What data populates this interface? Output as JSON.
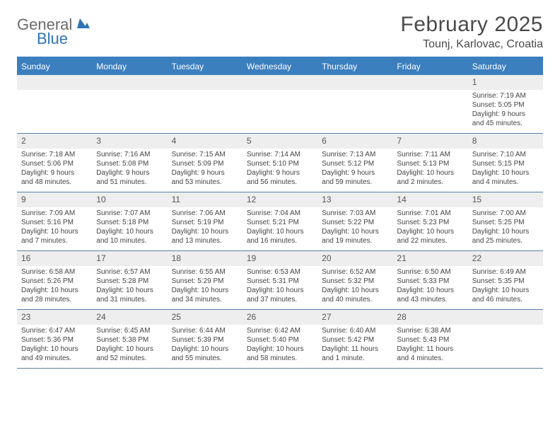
{
  "logo": {
    "text1": "General",
    "text2": "Blue"
  },
  "title": "February 2025",
  "location": "Tounj, Karlovac, Croatia",
  "colors": {
    "header_bg": "#3b7fbf",
    "header_text": "#ffffff",
    "daynum_bg": "#eeeeee",
    "border": "#5a7fa5",
    "logo_gray": "#6a6a6a",
    "logo_blue": "#2f75b5"
  },
  "dayNames": [
    "Sunday",
    "Monday",
    "Tuesday",
    "Wednesday",
    "Thursday",
    "Friday",
    "Saturday"
  ],
  "weeks": [
    [
      {
        "n": "",
        "sunrise": "",
        "sunset": "",
        "daylight": ""
      },
      {
        "n": "",
        "sunrise": "",
        "sunset": "",
        "daylight": ""
      },
      {
        "n": "",
        "sunrise": "",
        "sunset": "",
        "daylight": ""
      },
      {
        "n": "",
        "sunrise": "",
        "sunset": "",
        "daylight": ""
      },
      {
        "n": "",
        "sunrise": "",
        "sunset": "",
        "daylight": ""
      },
      {
        "n": "",
        "sunrise": "",
        "sunset": "",
        "daylight": ""
      },
      {
        "n": "1",
        "sunrise": "Sunrise: 7:19 AM",
        "sunset": "Sunset: 5:05 PM",
        "daylight": "Daylight: 9 hours and 45 minutes."
      }
    ],
    [
      {
        "n": "2",
        "sunrise": "Sunrise: 7:18 AM",
        "sunset": "Sunset: 5:06 PM",
        "daylight": "Daylight: 9 hours and 48 minutes."
      },
      {
        "n": "3",
        "sunrise": "Sunrise: 7:16 AM",
        "sunset": "Sunset: 5:08 PM",
        "daylight": "Daylight: 9 hours and 51 minutes."
      },
      {
        "n": "4",
        "sunrise": "Sunrise: 7:15 AM",
        "sunset": "Sunset: 5:09 PM",
        "daylight": "Daylight: 9 hours and 53 minutes."
      },
      {
        "n": "5",
        "sunrise": "Sunrise: 7:14 AM",
        "sunset": "Sunset: 5:10 PM",
        "daylight": "Daylight: 9 hours and 56 minutes."
      },
      {
        "n": "6",
        "sunrise": "Sunrise: 7:13 AM",
        "sunset": "Sunset: 5:12 PM",
        "daylight": "Daylight: 9 hours and 59 minutes."
      },
      {
        "n": "7",
        "sunrise": "Sunrise: 7:11 AM",
        "sunset": "Sunset: 5:13 PM",
        "daylight": "Daylight: 10 hours and 2 minutes."
      },
      {
        "n": "8",
        "sunrise": "Sunrise: 7:10 AM",
        "sunset": "Sunset: 5:15 PM",
        "daylight": "Daylight: 10 hours and 4 minutes."
      }
    ],
    [
      {
        "n": "9",
        "sunrise": "Sunrise: 7:09 AM",
        "sunset": "Sunset: 5:16 PM",
        "daylight": "Daylight: 10 hours and 7 minutes."
      },
      {
        "n": "10",
        "sunrise": "Sunrise: 7:07 AM",
        "sunset": "Sunset: 5:18 PM",
        "daylight": "Daylight: 10 hours and 10 minutes."
      },
      {
        "n": "11",
        "sunrise": "Sunrise: 7:06 AM",
        "sunset": "Sunset: 5:19 PM",
        "daylight": "Daylight: 10 hours and 13 minutes."
      },
      {
        "n": "12",
        "sunrise": "Sunrise: 7:04 AM",
        "sunset": "Sunset: 5:21 PM",
        "daylight": "Daylight: 10 hours and 16 minutes."
      },
      {
        "n": "13",
        "sunrise": "Sunrise: 7:03 AM",
        "sunset": "Sunset: 5:22 PM",
        "daylight": "Daylight: 10 hours and 19 minutes."
      },
      {
        "n": "14",
        "sunrise": "Sunrise: 7:01 AM",
        "sunset": "Sunset: 5:23 PM",
        "daylight": "Daylight: 10 hours and 22 minutes."
      },
      {
        "n": "15",
        "sunrise": "Sunrise: 7:00 AM",
        "sunset": "Sunset: 5:25 PM",
        "daylight": "Daylight: 10 hours and 25 minutes."
      }
    ],
    [
      {
        "n": "16",
        "sunrise": "Sunrise: 6:58 AM",
        "sunset": "Sunset: 5:26 PM",
        "daylight": "Daylight: 10 hours and 28 minutes."
      },
      {
        "n": "17",
        "sunrise": "Sunrise: 6:57 AM",
        "sunset": "Sunset: 5:28 PM",
        "daylight": "Daylight: 10 hours and 31 minutes."
      },
      {
        "n": "18",
        "sunrise": "Sunrise: 6:55 AM",
        "sunset": "Sunset: 5:29 PM",
        "daylight": "Daylight: 10 hours and 34 minutes."
      },
      {
        "n": "19",
        "sunrise": "Sunrise: 6:53 AM",
        "sunset": "Sunset: 5:31 PM",
        "daylight": "Daylight: 10 hours and 37 minutes."
      },
      {
        "n": "20",
        "sunrise": "Sunrise: 6:52 AM",
        "sunset": "Sunset: 5:32 PM",
        "daylight": "Daylight: 10 hours and 40 minutes."
      },
      {
        "n": "21",
        "sunrise": "Sunrise: 6:50 AM",
        "sunset": "Sunset: 5:33 PM",
        "daylight": "Daylight: 10 hours and 43 minutes."
      },
      {
        "n": "22",
        "sunrise": "Sunrise: 6:49 AM",
        "sunset": "Sunset: 5:35 PM",
        "daylight": "Daylight: 10 hours and 46 minutes."
      }
    ],
    [
      {
        "n": "23",
        "sunrise": "Sunrise: 6:47 AM",
        "sunset": "Sunset: 5:36 PM",
        "daylight": "Daylight: 10 hours and 49 minutes."
      },
      {
        "n": "24",
        "sunrise": "Sunrise: 6:45 AM",
        "sunset": "Sunset: 5:38 PM",
        "daylight": "Daylight: 10 hours and 52 minutes."
      },
      {
        "n": "25",
        "sunrise": "Sunrise: 6:44 AM",
        "sunset": "Sunset: 5:39 PM",
        "daylight": "Daylight: 10 hours and 55 minutes."
      },
      {
        "n": "26",
        "sunrise": "Sunrise: 6:42 AM",
        "sunset": "Sunset: 5:40 PM",
        "daylight": "Daylight: 10 hours and 58 minutes."
      },
      {
        "n": "27",
        "sunrise": "Sunrise: 6:40 AM",
        "sunset": "Sunset: 5:42 PM",
        "daylight": "Daylight: 11 hours and 1 minute."
      },
      {
        "n": "28",
        "sunrise": "Sunrise: 6:38 AM",
        "sunset": "Sunset: 5:43 PM",
        "daylight": "Daylight: 11 hours and 4 minutes."
      },
      {
        "n": "",
        "sunrise": "",
        "sunset": "",
        "daylight": ""
      }
    ]
  ]
}
